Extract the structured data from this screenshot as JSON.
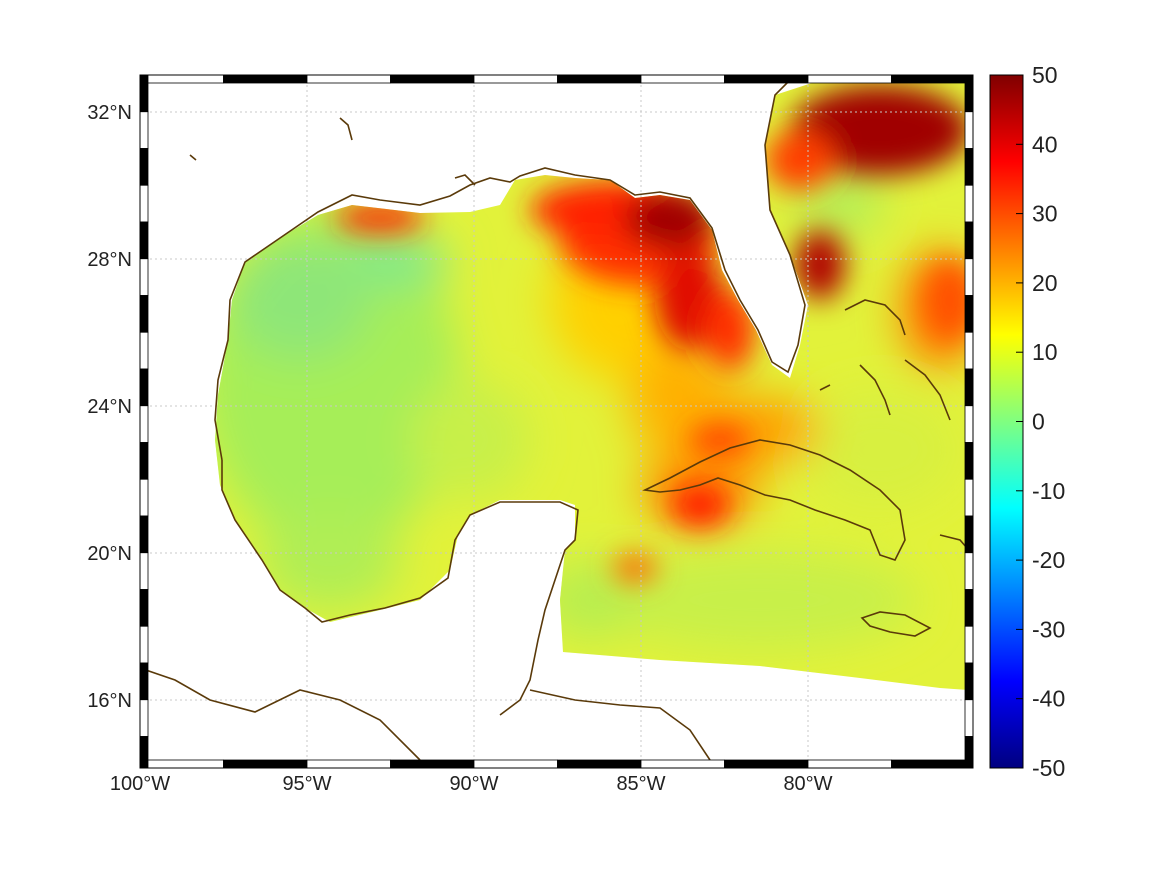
{
  "map": {
    "type": "heatmap",
    "lon_ticks": [
      {
        "value": -100,
        "label": "100°W"
      },
      {
        "value": -95,
        "label": "95°W"
      },
      {
        "value": -90,
        "label": "90°W"
      },
      {
        "value": -85,
        "label": "85°W"
      },
      {
        "value": -80,
        "label": "80°W"
      }
    ],
    "lat_ticks": [
      {
        "value": 32,
        "label": "32°N"
      },
      {
        "value": 28,
        "label": "28°N"
      },
      {
        "value": 24,
        "label": "24°N"
      },
      {
        "value": 20,
        "label": "20°N"
      },
      {
        "value": 16,
        "label": "16°N"
      }
    ],
    "lon_range": [
      -100,
      -75
    ],
    "lat_range": [
      15,
      33
    ],
    "grid": true,
    "colormap": "jet",
    "colors": {
      "coastline": "#5a3a0a",
      "grid": "#c8c8c8",
      "frame": "#000000"
    }
  },
  "colorbar": {
    "range": [
      -50,
      50
    ],
    "labels": [
      "50",
      "40",
      "30",
      "20",
      "10",
      "0",
      "-10",
      "-20",
      "-30",
      "-40",
      "-50"
    ],
    "stops": [
      "#800000",
      "#ff0000",
      "#ff8000",
      "#ffff00",
      "#80ff80",
      "#00ffff",
      "#0080ff",
      "#0000ff",
      "#000080"
    ]
  }
}
